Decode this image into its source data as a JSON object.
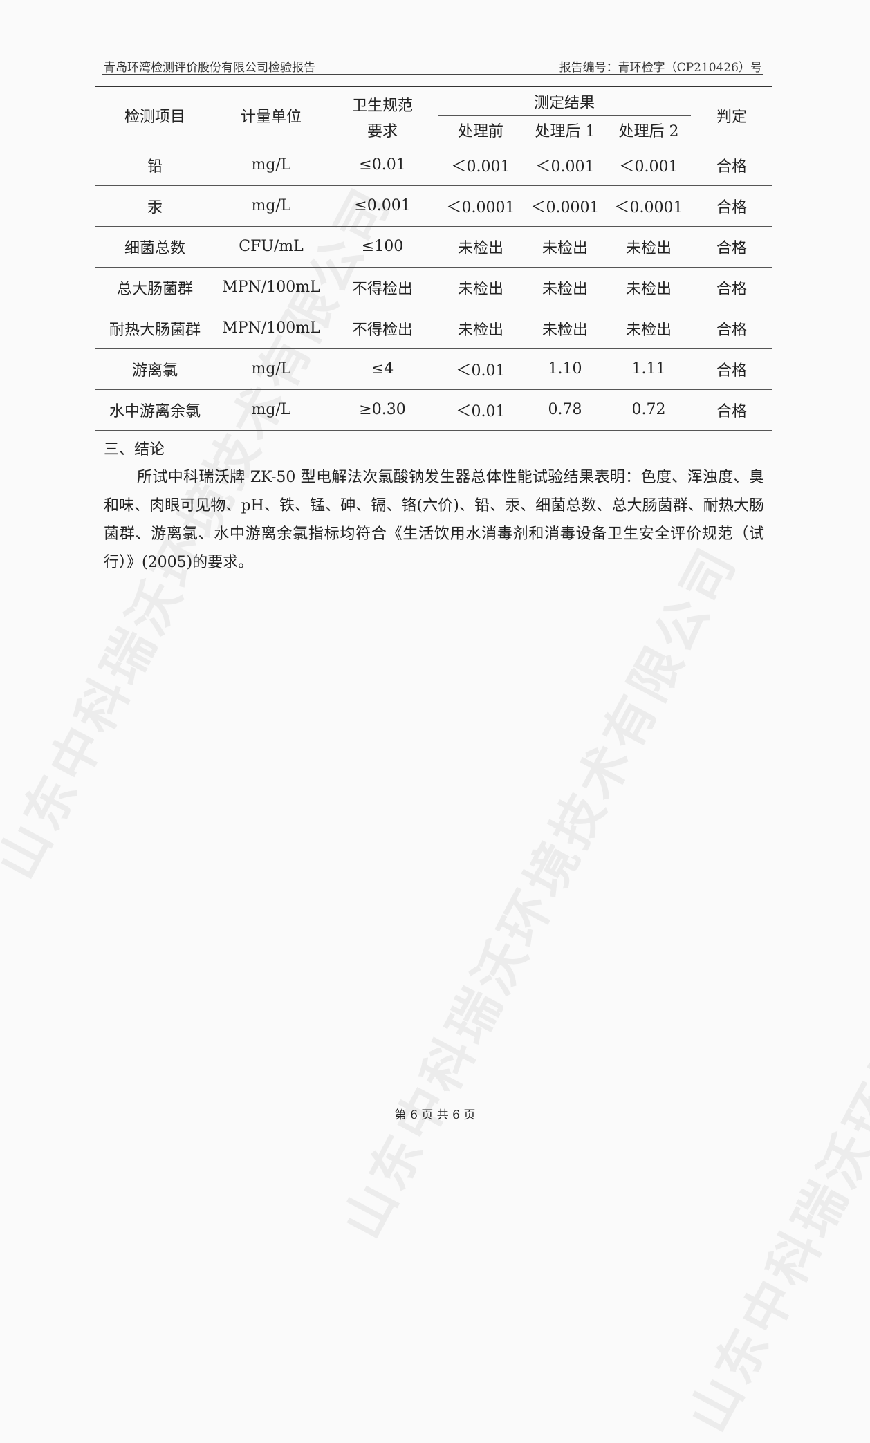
{
  "watermark": "山东中科瑞沃环境技术有限公司",
  "header": {
    "org": "青岛环湾检测评价股份有限公司检验报告",
    "report_no": "报告编号：青环检字（CP210426）号"
  },
  "table": {
    "headers": {
      "item": "检测项目",
      "unit": "计量单位",
      "standard_line1": "卫生规范",
      "standard_line2": "要求",
      "results": "测定结果",
      "before": "处理前",
      "after1": "处理后 1",
      "after2": "处理后 2",
      "judgement": "判定"
    },
    "rows": [
      [
        "铅",
        "mg/L",
        "≤0.01",
        "＜0.001",
        "＜0.001",
        "＜0.001",
        "合格"
      ],
      [
        "汞",
        "mg/L",
        "≤0.001",
        "＜0.0001",
        "＜0.0001",
        "＜0.0001",
        "合格"
      ],
      [
        "细菌总数",
        "CFU/mL",
        "≤100",
        "未检出",
        "未检出",
        "未检出",
        "合格"
      ],
      [
        "总大肠菌群",
        "MPN/100mL",
        "不得检出",
        "未检出",
        "未检出",
        "未检出",
        "合格"
      ],
      [
        "耐热大肠菌群",
        "MPN/100mL",
        "不得检出",
        "未检出",
        "未检出",
        "未检出",
        "合格"
      ],
      [
        "游离氯",
        "mg/L",
        "≤4",
        "＜0.01",
        "1.10",
        "1.11",
        "合格"
      ],
      [
        "水中游离余氯",
        "mg/L",
        "≥0.30",
        "＜0.01",
        "0.78",
        "0.72",
        "合格"
      ]
    ]
  },
  "conclusion": {
    "heading": "三、结论",
    "text": "所试中科瑞沃牌 ZK-50 型电解法次氯酸钠发生器总体性能试验结果表明：色度、浑浊度、臭和味、肉眼可见物、pH、铁、锰、砷、镉、铬(六价)、铅、汞、细菌总数、总大肠菌群、耐热大肠菌群、游离氯、水中游离余氯指标均符合《生活饮用水消毒剂和消毒设备卫生安全评价规范（试行）》(2005)的要求。"
  },
  "footer": {
    "page": "第 6 页 共 6 页"
  }
}
